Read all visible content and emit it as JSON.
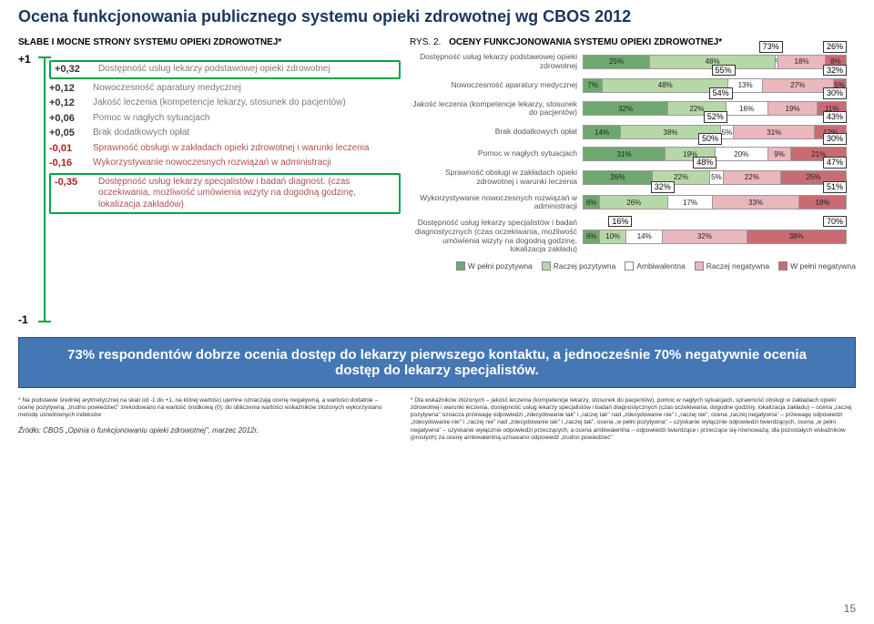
{
  "title": "Ocena funkcjonowania publicznego systemu opieki zdrowotnej wg CBOS 2012",
  "leftPanel": {
    "heading": "SŁABE I MOCNE STRONY SYSTEMU OPIEKI ZDROWOTNEJ*",
    "axisTop": "+1",
    "axisBottom": "-1",
    "rows": [
      {
        "value": "+0,32",
        "text": "Dostępność usług lekarzy podstawowej opieki zdrowotnej",
        "frame": true,
        "neg": false
      },
      {
        "value": "+0,12",
        "text": "Nowoczesność aparatury medycznej",
        "frame": false,
        "neg": false
      },
      {
        "value": "+0,12",
        "text": "Jakość leczenia (kompetencje lekarzy, stosunek do pacjentów)",
        "frame": false,
        "neg": false
      },
      {
        "value": "+0,06",
        "text": "Pomoc w nagłych sytuacjach",
        "frame": false,
        "neg": false
      },
      {
        "value": "+0,05",
        "text": "Brak dodatkowych opłat",
        "frame": false,
        "neg": false
      },
      {
        "value": "-0,01",
        "text": "Sprawność obsługi w zakładach opieki zdrowotnej i warunki leczenia",
        "frame": false,
        "neg": true
      },
      {
        "value": "-0,16",
        "text": "Wykorzystywanie nowoczesnych rozwiązań w administracji",
        "frame": false,
        "neg": true
      },
      {
        "value": "-0,35",
        "text": "Dostępność usług lekarzy specjalistów i badań diagnost. (czas oczekiwania, możliwość umówienia wizyty na dogodną godzinę, lokalizacja zakładów)",
        "frame": true,
        "neg": true
      }
    ]
  },
  "rightPanel": {
    "rys": "RYS. 2.",
    "heading": "OCENY FUNKCJONOWANIA SYSTEMU OPIEKI ZDROWOTNEJ*",
    "colors": {
      "c1": "#6fa86f",
      "c2": "#b7d7a8",
      "c3": "#ffffff",
      "c4": "#e9b7bd",
      "c5": "#c96b73"
    },
    "rows": [
      {
        "label": "Dostępność usług lekarzy podstawowej opieki zdrowotnej",
        "segs": [
          25,
          48,
          1,
          18,
          8
        ],
        "annL": "73%",
        "annR": "26%"
      },
      {
        "label": "Nowoczesność aparatury medycznej",
        "segs": [
          7,
          48,
          13,
          27,
          5
        ],
        "annL": "55%",
        "annR": "32%"
      },
      {
        "label": "Jakość leczenia (kompetencje lekarzy, stosunek do pacjentów)",
        "segs": [
          32,
          22,
          16,
          19,
          11
        ],
        "annL": "54%",
        "annR": "30%"
      },
      {
        "label": "Brak dodatkowych opłat",
        "segs": [
          14,
          38,
          5,
          31,
          12
        ],
        "annL": "52%",
        "annR": "43%"
      },
      {
        "label": "Pomoc w nagłych sytuacjach",
        "segs": [
          31,
          19,
          20,
          9,
          21
        ],
        "annL": "50%",
        "annR": "30%"
      },
      {
        "label": "Sprawność obsługi w zakładach opieki zdrowotnej i warunki leczenia",
        "segs": [
          26,
          22,
          5,
          22,
          25
        ],
        "annL": "48%",
        "annR": "47%"
      },
      {
        "label": "Wykorzystywanie nowoczesnych rozwiązań w administracji",
        "segs": [
          6,
          26,
          17,
          33,
          18
        ],
        "annL": "32%",
        "annR": "51%"
      },
      {
        "label": "Dostępność usług lekarzy specjalistów i badań diagnostycznych (czas oczekiwania, możliwość umówienia wizyty na dogodną godzinę, lokalizacja zakładu)",
        "segs": [
          6,
          10,
          14,
          32,
          38
        ],
        "annL": "16%",
        "annR": "70%"
      }
    ],
    "legend": [
      {
        "label": "W pełni pozytywna",
        "ckey": "c1"
      },
      {
        "label": "Raczej pozytywna",
        "ckey": "c2"
      },
      {
        "label": "Ambiwalentna",
        "ckey": "c3"
      },
      {
        "label": "Raczej negatywna",
        "ckey": "c4"
      },
      {
        "label": "W pełni negatywna",
        "ckey": "c5"
      }
    ]
  },
  "callout": "73% respondentów dobrze ocenia dostęp do lekarzy pierwszego kontaktu, a jednocześnie 70% negatywnie ocenia dostęp do lekarzy specjalistów.",
  "footnoteLeft": "* Na podstawie średniej arytmetycznej na skali od -1 do +1, na której wartości ujemne oznaczają ocenę negatywną, a wartości dodatnie – ocenę pozytywną; „trudno powiedzieć\" zrekodowano na wartość środkową (0); do obliczenia wartości wskaźników złożonych wykorzystano metodę uśrednionych indeksów",
  "footnoteRight": "* Dla wskaźników złożonych – jakość leczenia (kompetencje lekarzy, stosunek do pacjentów), pomoc w nagłych sytuacjach, sprawność obsługi w zakładach opieki zdrowotnej i warunki leczenia, dostępność usług lekarzy specjalistów i badań diagnostycznych (czas oczekiwania, dogodne godziny, lokalizacja zakładu) – ocena „raczej pozytywna\" oznacza przewagę odpowiedzi „zdecydowanie tak\" i „raczej tak\" nad „zdecydowanie nie\" i „raczej nie\", ocena „raczej negatywna\" – przewagę odpowiedzi „zdecydowanie nie\" i „raczej nie\" nad „zdecydowanie tak\" i „raczej tak\", ocena „w pełni pozytywna\" – uzyskanie wyłącznie odpowiedzi twierdzących, ocena „w pełni negatywna\" – uzyskanie wyłącznie odpowiedzi przeczących, a ocena ambiwalentna – odpowiedzi twierdzące i przeczące się równoważą; dla pozostałych wskaźników (prostych) za ocenę ambiwalentną uznawano odpowiedź „trudno powiedzieć\"",
  "source": "Źródło: CBOS „Opinia o funkcjonowaniu opieki zdrowotnej\", marzec 2012r.",
  "pageNum": "15"
}
